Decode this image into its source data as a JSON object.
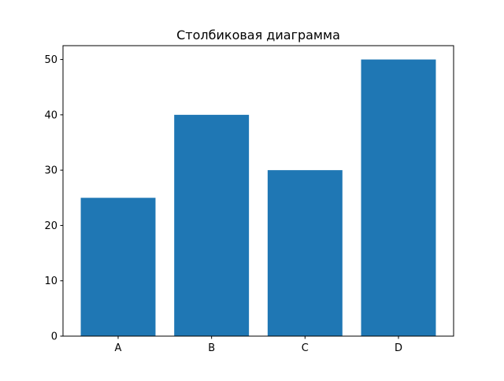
{
  "chart_data": {
    "type": "bar",
    "title": "Столбиковая диаграмма",
    "categories": [
      "A",
      "B",
      "C",
      "D"
    ],
    "values": [
      25,
      40,
      30,
      50
    ],
    "xlabel": "",
    "ylabel": "",
    "ylim": [
      0,
      52.5
    ],
    "yticks": [
      0,
      10,
      20,
      30,
      40,
      50
    ],
    "grid": false,
    "bar_color": "#1f77b4"
  }
}
